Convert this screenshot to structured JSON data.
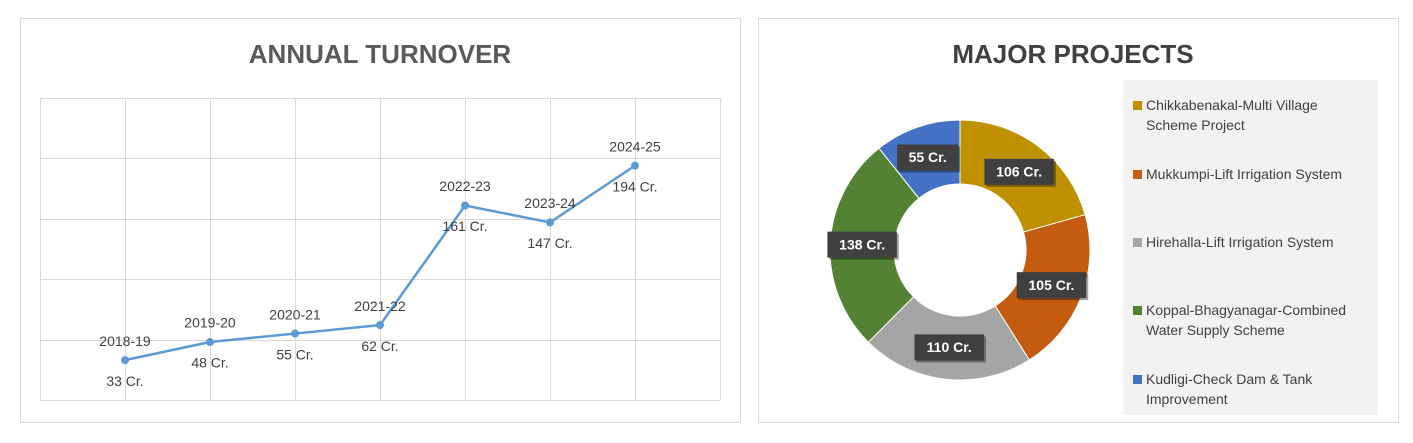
{
  "chart_data": [
    {
      "type": "line",
      "title": "ANNUAL TURNOVER",
      "categories": [
        "2018-19",
        "2019-20",
        "2020-21",
        "2021-22",
        "2022-23",
        "2023-24",
        "2024-25"
      ],
      "values": [
        33,
        48,
        55,
        62,
        161,
        147,
        194
      ],
      "value_labels": [
        "33 Cr.",
        "48 Cr.",
        "55 Cr.",
        "62 Cr.",
        "161 Cr.",
        "147 Cr.",
        "194 Cr."
      ],
      "color": "#5b9bd5",
      "ylim": [
        0,
        250
      ],
      "yticks": [
        0,
        50,
        100,
        150,
        200,
        250
      ],
      "grid": true
    },
    {
      "type": "donut",
      "title": "MAJOR PROJECTS",
      "categories": [
        "Chikkabenakal-Multi Village Scheme Project",
        "Mukkumpi-Lift Irrigation System",
        "Hirehalla-Lift Irrigation System",
        "Koppal-Bhagyanagar-Combined Water Supply Scheme",
        "Kudligi-Check Dam & Tank Improvement"
      ],
      "values": [
        106,
        105,
        110,
        138,
        55
      ],
      "value_labels": [
        "106 Cr.",
        "105 Cr.",
        "110 Cr.",
        "138 Cr.",
        "55 Cr."
      ],
      "colors": [
        "#bf9000",
        "#c55a11",
        "#a5a5a5",
        "#548235",
        "#4472c4"
      ],
      "legend": "right"
    }
  ]
}
